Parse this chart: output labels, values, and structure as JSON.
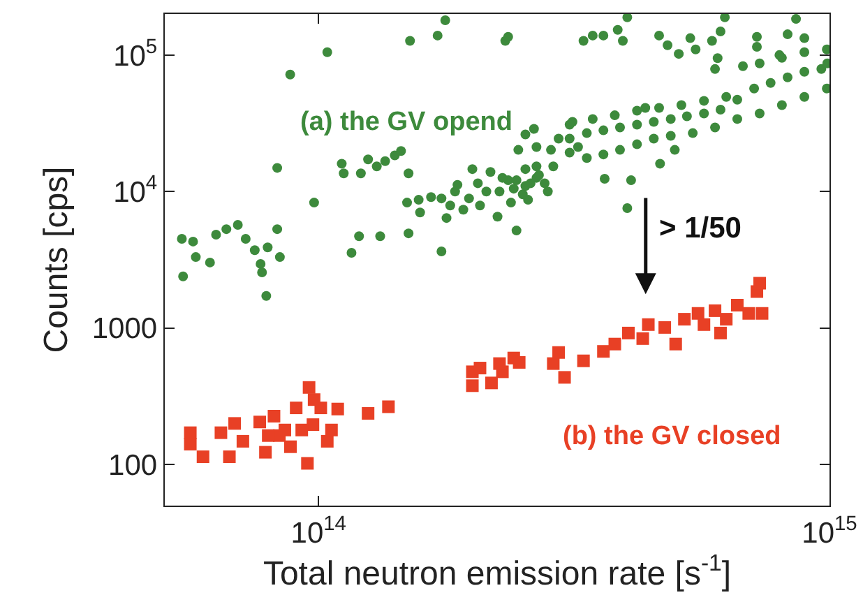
{
  "chart_data": {
    "type": "scatter",
    "log": "xy",
    "grid": false,
    "legend": false,
    "xlabel": "Total neutron emission rate [s$^{-1}$]",
    "ylabel": "Counts [cps]",
    "xlim": [
      50000000000000.0,
      1000000000000000.0
    ],
    "ylim": [
      50,
      200000
    ],
    "xticks": [
      {
        "value": 100000000000000.0,
        "label": "10$^{14}$"
      },
      {
        "value": 1000000000000000.0,
        "label": "10$^{15}$"
      }
    ],
    "yticks": [
      100,
      1000,
      {
        "value": 10000,
        "label": "10$^{4}$"
      },
      {
        "value": 100000,
        "label": "10$^{5}$"
      }
    ],
    "annotations": [
      "> 1/50"
    ],
    "series": [
      {
        "name": "(a) the GV opend",
        "color": "#3d8a3c",
        "marker": "circle",
        "x": [
          54300000000000.0,
          54000000000000.0,
          56800000000000.0,
          57500000000000.0,
          61300000000000.0,
          63000000000000.0,
          66000000000000.0,
          69500000000000.0,
          72000000000000.0,
          75000000000000.0,
          77000000000000.0,
          77500000000000.0,
          79000000000000.0,
          79500000000000.0,
          83000000000000.0,
          84000000000000.0,
          83000000000000.0,
          88000000000000.0,
          98000000000000.0,
          104000000000000.0,
          111000000000000.0,
          112000000000000.0,
          116000000000000.0,
          120000000000000.0,
          121000000000000.0,
          125000000000000.0,
          130000000000000.0,
          132000000000000.0,
          135000000000000.0,
          141000000000000.0,
          145000000000000.0,
          150000000000000.0,
          150000000000000.0,
          149000000000000.0,
          151000000000000.0,
          157000000000000.0,
          158000000000000.0,
          166000000000000.0,
          171000000000000.0,
          174000000000000.0,
          177000000000000.0,
          174000000000000.0,
          178000000000000.0,
          181000000000000.0,
          185000000000000.0,
          187000000000000.0,
          192000000000000.0,
          197000000000000.0,
          200000000000000.0,
          205000000000000.0,
          207000000000000.0,
          213000000000000.0,
          217000000000000.0,
          224000000000000.0,
          232000000000000.0,
          235000000000000.0,
          226000000000000.0,
          235000000000000.0,
          238000000000000.0,
          244000000000000.0,
          246000000000000.0,
          254000000000000.0,
          254000000000000.0,
          264000000000000.0,
          257000000000000.0,
          267000000000000.0,
          267000000000000.0,
          277000000000000.0,
          285000000000000.0,
          288000000000000.0,
          295000000000000.0,
          314000000000000.0,
          322000000000000.0,
          330000000000000.0,
          344000000000000.0,
          361000000000000.0,
          363000000000000.0,
          385000000000000.0,
          394000000000000.0,
          402000000000000.0,
          402000000000000.0,
          409000000000000.0,
          436000000000000.0,
          464000000000000.0,
          466000000000000.0,
          482000000000000.0,
          498000000000000.0,
          507000000000000.0,
          547000000000000.0,
          534000000000000.0,
          589000000000000.0,
          604000000000000.0,
          612000000000000.0,
          597000000000000.0,
          624000000000000.0,
          721000000000000.0,
          721000000000000.0,
          828000000000000.0,
          860000000000000.0,
          893000000000000.0,
          798000000000000.0,
          310000000000000.0,
          344000000000000.0,
          380000000000000.0,
          420000000000000.0,
          464000000000000.0,
          513000000000000.0,
          568000000000000.0,
          628000000000000.0,
          677000000000000.0,
          730000000000000.0,
          807000000000000.0,
          893000000000000.0,
          988000000000000.0,
          310000000000000.0,
          335000000000000.0,
          361000000000000.0,
          389000000000000.0,
          420000000000000.0,
          453000000000000.0,
          489000000000000.0,
          526000000000000.0,
          568000000000000.0,
          612000000000000.0,
          660000000000000.0,
          712000000000000.0,
          767000000000000.0,
          828000000000000.0,
          893000000000000.0,
          964000000000000.0,
          990000000000000.0,
          310000000000000.0,
          335000000000000.0,
          361000000000000.0,
          389000000000000.0,
          420000000000000.0,
          453000000000000.0,
          489000000000000.0,
          540000000000000.0,
          597000000000000.0,
          660000000000000.0,
          730000000000000.0,
          807000000000000.0,
          893000000000000.0,
          988000000000000.0,
          229000000000000.0,
          241000000000000.0,
          251000000000000.0,
          260000000000000.0,
          270000000000000.0,
          281000000000000.0,
          254000000000000.0,
          267000000000000.0,
          244000000000000.0
        ],
        "values": [
          2390,
          4500,
          4300,
          3310,
          3020,
          4830,
          5300,
          5700,
          4500,
          3720,
          2950,
          2560,
          1720,
          3900,
          5300,
          3310,
          14900,
          72000,
          8300,
          105000,
          16000,
          13600,
          3560,
          4710,
          13600,
          17200,
          15300,
          4710,
          16700,
          18400,
          19800,
          13600,
          4940,
          8300,
          127000,
          8700,
          7030,
          9100,
          139000,
          3640,
          180000,
          8900,
          6400,
          7900,
          10000,
          11200,
          7360,
          8900,
          14600,
          11500,
          7900,
          10000,
          13900,
          6550,
          127000,
          136000,
          10000,
          12100,
          8300,
          5180,
          20200,
          26200,
          11000,
          28800,
          8700,
          12600,
          21200,
          11500,
          20200,
          15300,
          24400,
          32400,
          21200,
          127000,
          139000,
          139000,
          12400,
          153000,
          127000,
          189000,
          7560,
          12100,
          41000,
          139000,
          16000,
          118000,
          20200,
          102000,
          110000,
          133000,
          127000,
          95000,
          149000,
          79000,
          189000,
          136000,
          115000,
          142000,
          184000,
          133000,
          100000,
          30900,
          34000,
          36200,
          39100,
          41000,
          43000,
          46200,
          49400,
          82900,
          86900,
          95400,
          105000,
          110000,
          24400,
          26800,
          28100,
          29500,
          30900,
          32400,
          34000,
          35600,
          37300,
          39800,
          47100,
          56900,
          62500,
          68700,
          75500,
          79100,
          86900,
          19300,
          17600,
          18700,
          20200,
          22200,
          24400,
          25600,
          26800,
          29500,
          34000,
          37300,
          43000,
          49400,
          56900,
          12600,
          10500,
          9540,
          11500,
          13200,
          10000,
          14600,
          15300,
          12100
        ]
      },
      {
        "name": "(b) the GV closed",
        "color": "#e84025",
        "marker": "square",
        "x": [
          56100000000000.0,
          56100000000000.0,
          59400000000000.0,
          64400000000000.0,
          66900000000000.0,
          68500000000000.0,
          71100000000000.0,
          76700000000000.0,
          78700000000000.0,
          81800000000000.0,
          83800000000000.0,
          88100000000000.0,
          90400000000000.0,
          95100000000000.0,
          95800000000000.0,
          97500000000000.0,
          101000000000000.0,
          104000000000000.0,
          106000000000000.0,
          109000000000000.0,
          98000000000000.0,
          92700000000000.0,
          85900000000000.0,
          79700000000000.0,
          125000000000000.0,
          137000000000000.0,
          200000000000000.0,
          200000000000000.0,
          207000000000000.0,
          218000000000000.0,
          229000000000000.0,
          226000000000000.0,
          241000000000000.0,
          247000000000000.0,
          288000000000000.0,
          295000000000000.0,
          303000000000000.0,
          330000000000000.0,
          361000000000000.0,
          380000000000000.0,
          404000000000000.0,
          431000000000000.0,
          442000000000000.0,
          476000000000000.0,
          500000000000000.0,
          520000000000000.0,
          553000000000000.0,
          568000000000000.0,
          612000000000000.0,
          628000000000000.0,
          660000000000000.0,
          695000000000000.0,
          721000000000000.0,
          730000000000000.0,
          738000000000000.0,
          597000000000000.0
        ],
        "values": [
          171,
          141,
          114,
          171,
          114,
          200,
          148,
          205,
          123,
          226,
          163,
          135,
          260,
          102,
          367,
          196,
          260,
          148,
          179,
          255,
          299,
          179,
          179,
          163,
          237,
          265,
          378,
          478,
          509,
          396,
          478,
          549,
          603,
          560,
          549,
          662,
          435,
          575,
          674,
          763,
          919,
          837,
          1060,
          1010,
          763,
          1160,
          1280,
          1060,
          919,
          1160,
          1470,
          1280,
          1850,
          2130,
          1280,
          1340
        ]
      }
    ]
  }
}
